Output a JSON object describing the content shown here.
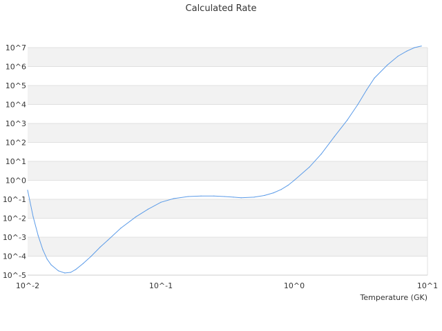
{
  "chart_data": {
    "type": "line",
    "title": "Calculated Rate",
    "xlabel": "Temperature (GK)",
    "ylabel": "",
    "x_scale": "log",
    "y_scale": "log",
    "xlim": [
      0.01,
      10
    ],
    "ylim": [
      1e-05,
      10000000.0
    ],
    "grid": "alternating horizontal bands",
    "x_ticks": [
      "10^-2",
      "10^-1",
      "10^0",
      "10^1"
    ],
    "y_ticks": [
      "10^-5",
      "10^-4",
      "10^-3",
      "10^-2",
      "10^-1",
      "10^0",
      "10^1",
      "10^2",
      "10^3",
      "10^4",
      "10^5",
      "10^6",
      "10^7"
    ],
    "series": [
      {
        "color": "#5b9be8",
        "x": [
          0.01,
          0.011,
          0.012,
          0.013,
          0.014,
          0.015,
          0.017,
          0.019,
          0.021,
          0.023,
          0.026,
          0.03,
          0.035,
          0.04,
          0.05,
          0.065,
          0.08,
          0.1,
          0.125,
          0.16,
          0.2,
          0.25,
          0.3,
          0.35,
          0.4,
          0.5,
          0.6,
          0.7,
          0.8,
          0.9,
          1.0,
          1.3,
          1.6,
          2.0,
          2.5,
          3.0,
          3.5,
          4.0,
          5.0,
          6.0,
          7.0,
          8.0,
          9.0
        ],
        "y": [
          0.3,
          0.012,
          0.0012,
          0.00022,
          7e-05,
          3.5e-05,
          1.7e-05,
          1.3e-05,
          1.4e-05,
          2e-05,
          4e-05,
          0.0001,
          0.0003,
          0.0007,
          0.003,
          0.012,
          0.03,
          0.07,
          0.11,
          0.14,
          0.15,
          0.15,
          0.14,
          0.13,
          0.12,
          0.13,
          0.16,
          0.22,
          0.33,
          0.55,
          1.0,
          5,
          25,
          200,
          1500,
          10000,
          60000,
          250000,
          1200000,
          3500000,
          6500000,
          10000000,
          12000000
        ]
      }
    ]
  }
}
